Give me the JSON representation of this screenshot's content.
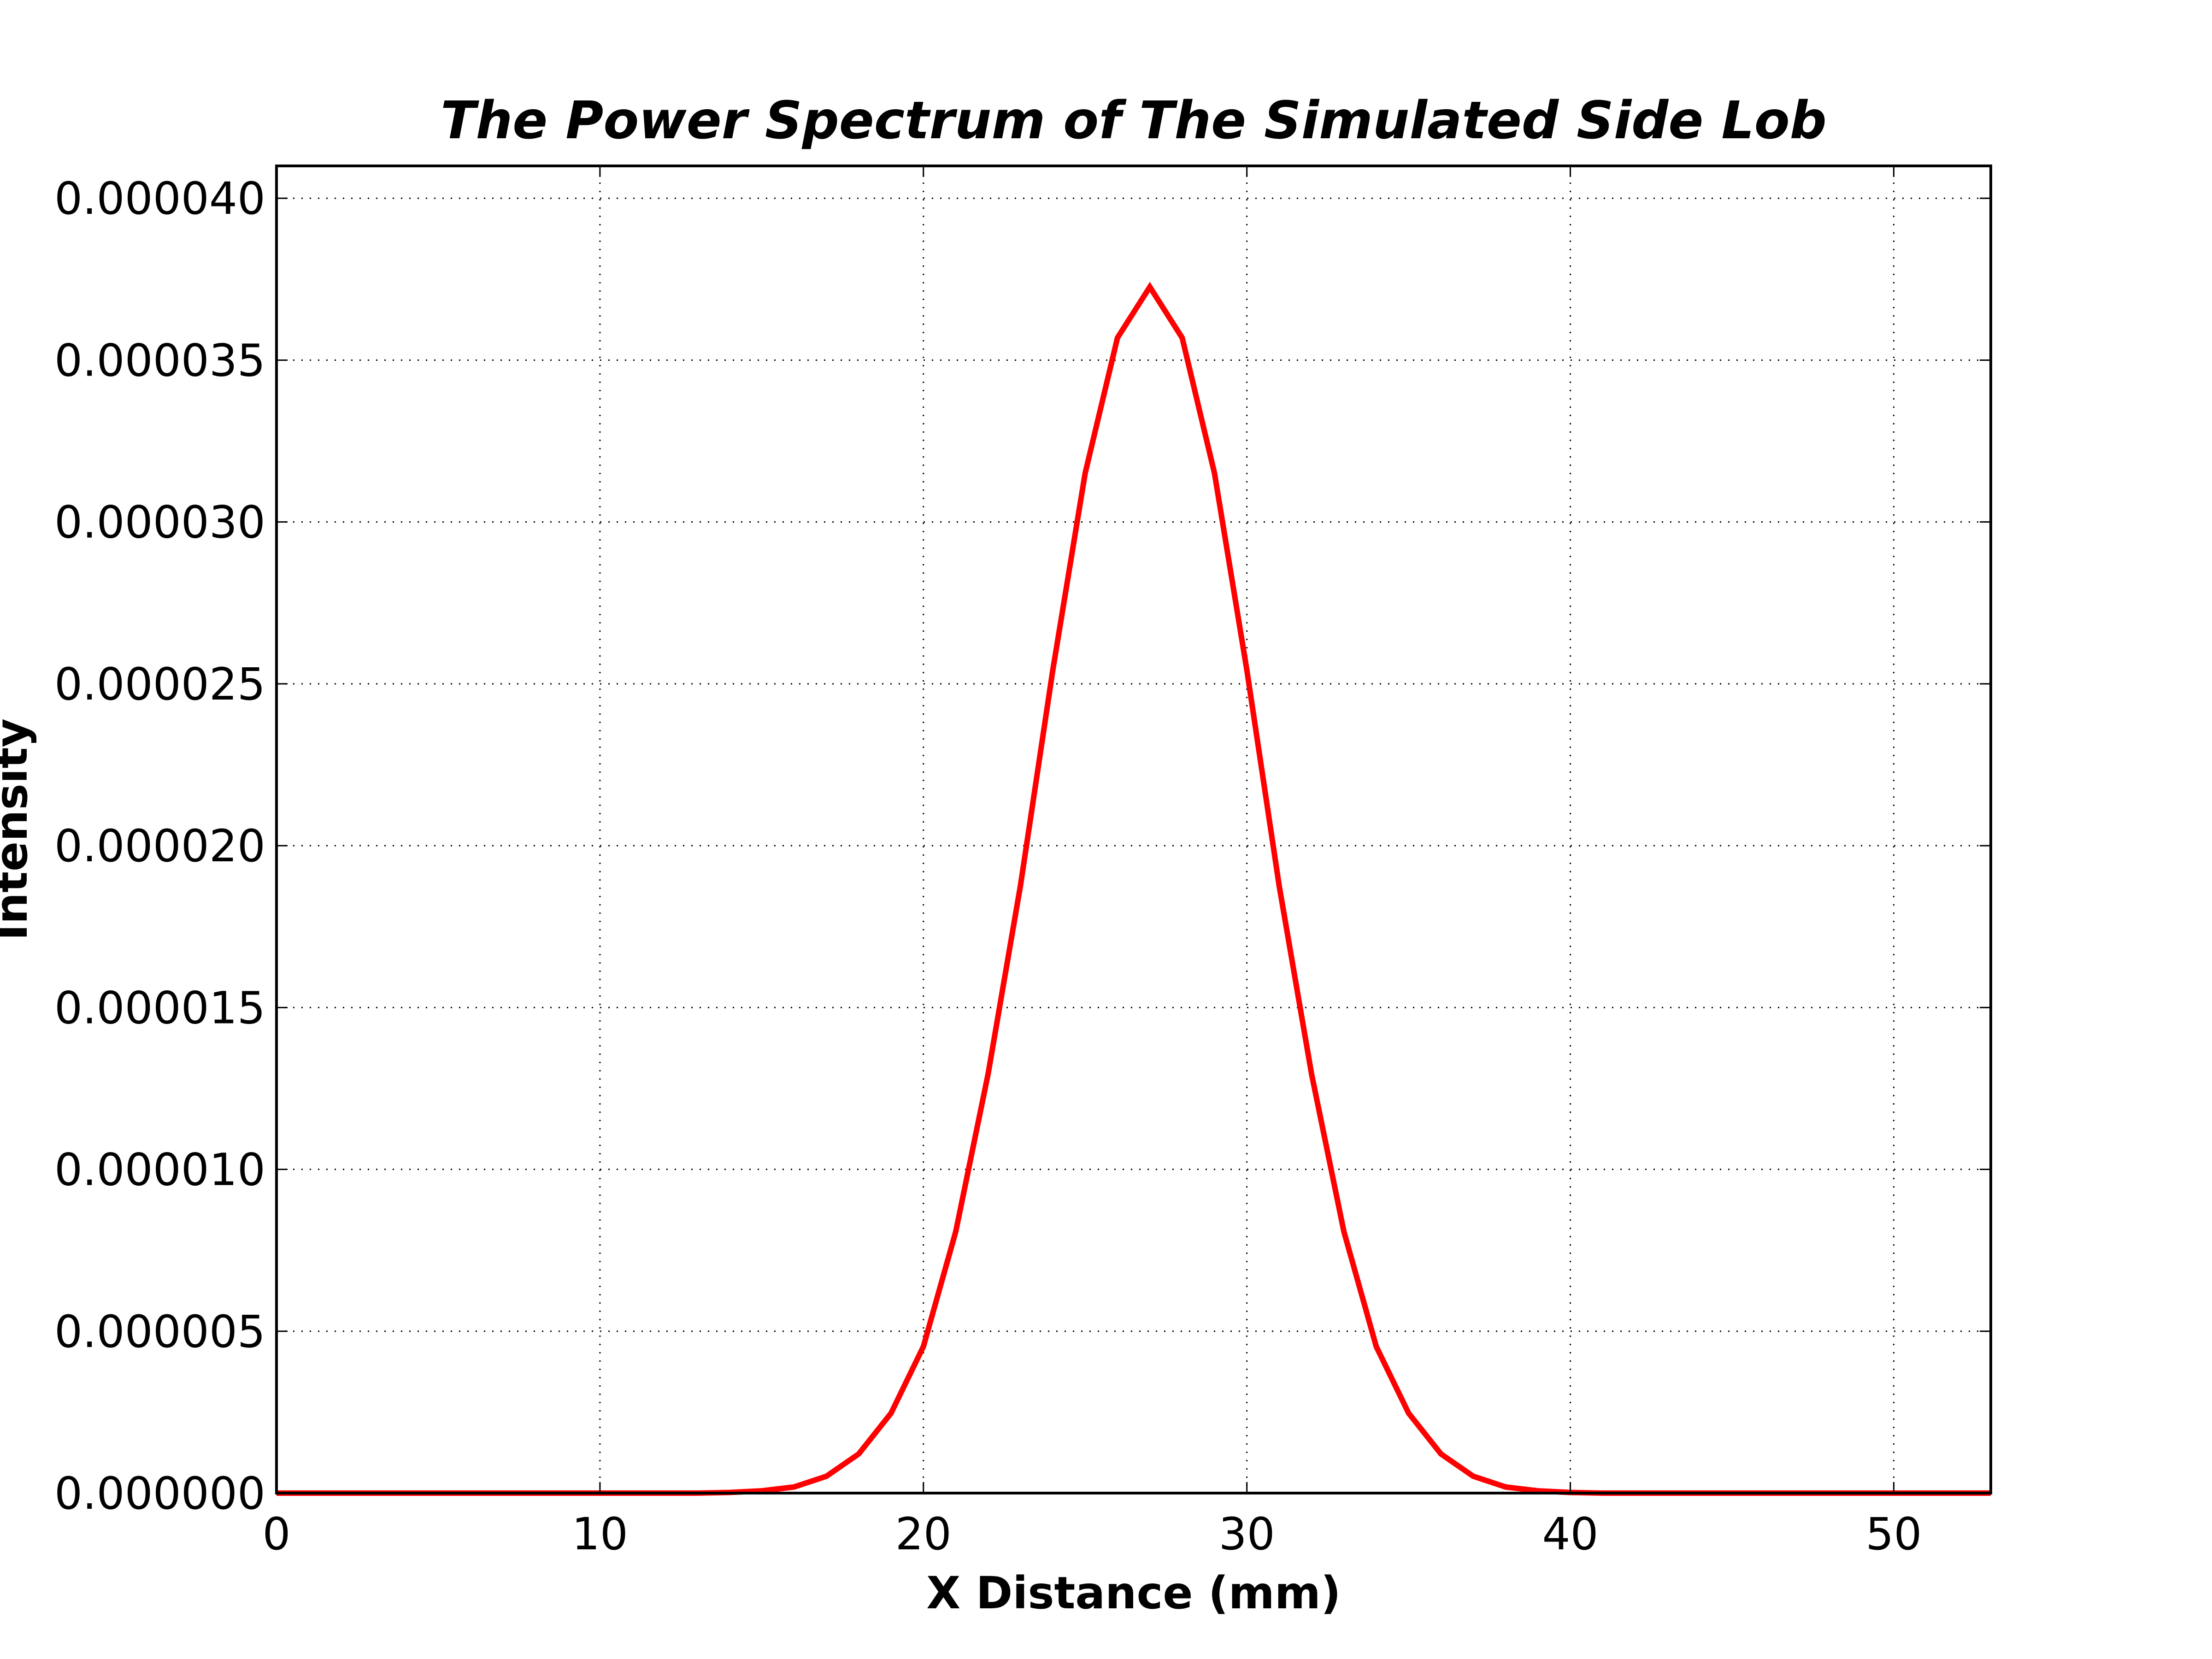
{
  "chart_data": {
    "type": "line",
    "title": "The Power Spectrum of The Simulated Side Lob",
    "xlabel": "X Distance (mm)",
    "ylabel": "Intensity",
    "xlim": [
      0,
      53
    ],
    "ylim": [
      0,
      4.1e-05
    ],
    "grid": true,
    "x_ticks": [
      0,
      10,
      20,
      30,
      40,
      50
    ],
    "x_tick_labels": [
      "0",
      "10",
      "20",
      "30",
      "40",
      "50"
    ],
    "y_ticks": [
      0,
      5e-06,
      1e-05,
      1.5e-05,
      2e-05,
      2.5e-05,
      3e-05,
      3.5e-05,
      4e-05
    ],
    "y_tick_labels": [
      "0.000000",
      "0.000005",
      "0.000010",
      "0.000015",
      "0.000020",
      "0.000025",
      "0.000030",
      "0.000035",
      "0.000040"
    ],
    "series": [
      {
        "color": "#ff0000",
        "x": [
          0,
          1,
          2,
          3,
          4,
          5,
          6,
          7,
          8,
          9,
          10,
          11,
          12,
          13,
          14,
          15,
          16,
          17,
          18,
          19,
          20,
          21,
          22,
          23,
          24,
          25,
          26,
          27,
          28,
          29,
          30,
          31,
          32,
          33,
          34,
          35,
          36,
          37,
          38,
          39,
          40,
          41,
          42,
          43,
          44,
          45,
          46,
          47,
          48,
          49,
          50,
          51,
          52,
          53
        ],
        "values": [
          0,
          0,
          0,
          0,
          0,
          0,
          0,
          0,
          0,
          0,
          0,
          0,
          0,
          0.0,
          2e-08,
          7e-08,
          1.9e-07,
          5.2e-07,
          1.21e-06,
          2.47e-06,
          4.53e-06,
          8.08e-06,
          1.295e-05,
          1.876e-05,
          2.542e-05,
          3.15e-05,
          3.569e-05,
          3.726e-05,
          3.569e-05,
          3.15e-05,
          2.542e-05,
          1.876e-05,
          1.295e-05,
          8.08e-06,
          4.53e-06,
          2.47e-06,
          1.21e-06,
          5.2e-07,
          1.9e-07,
          7e-08,
          2e-08,
          0,
          0,
          0,
          0,
          0,
          0,
          0,
          0,
          0,
          0,
          0,
          0,
          0
        ]
      }
    ]
  }
}
